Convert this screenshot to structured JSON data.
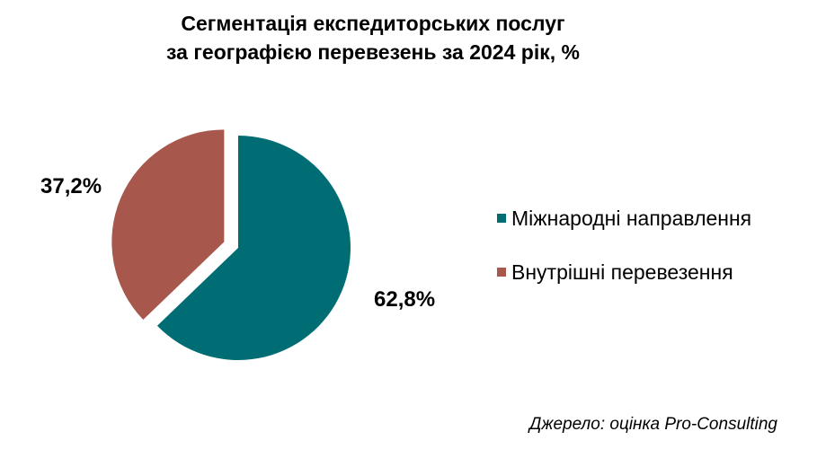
{
  "chart_data": {
    "type": "pie",
    "title_lines": [
      "Сегментація експедиторських послуг",
      "за географією перевезень за 2024 рік, %"
    ],
    "unit": "%",
    "slices": [
      {
        "label": "Міжнародні направлення",
        "value": 62.8,
        "display": "62,8%",
        "color": "#006D75"
      },
      {
        "label": "Внутрішні перевезення",
        "value": 37.2,
        "display": "37,2%",
        "color": "#A7574C"
      }
    ],
    "exploded_slice": "Внутрішні перевезення",
    "legend_position": "right"
  },
  "source": "Джерело: оцінка Pro-Consulting"
}
